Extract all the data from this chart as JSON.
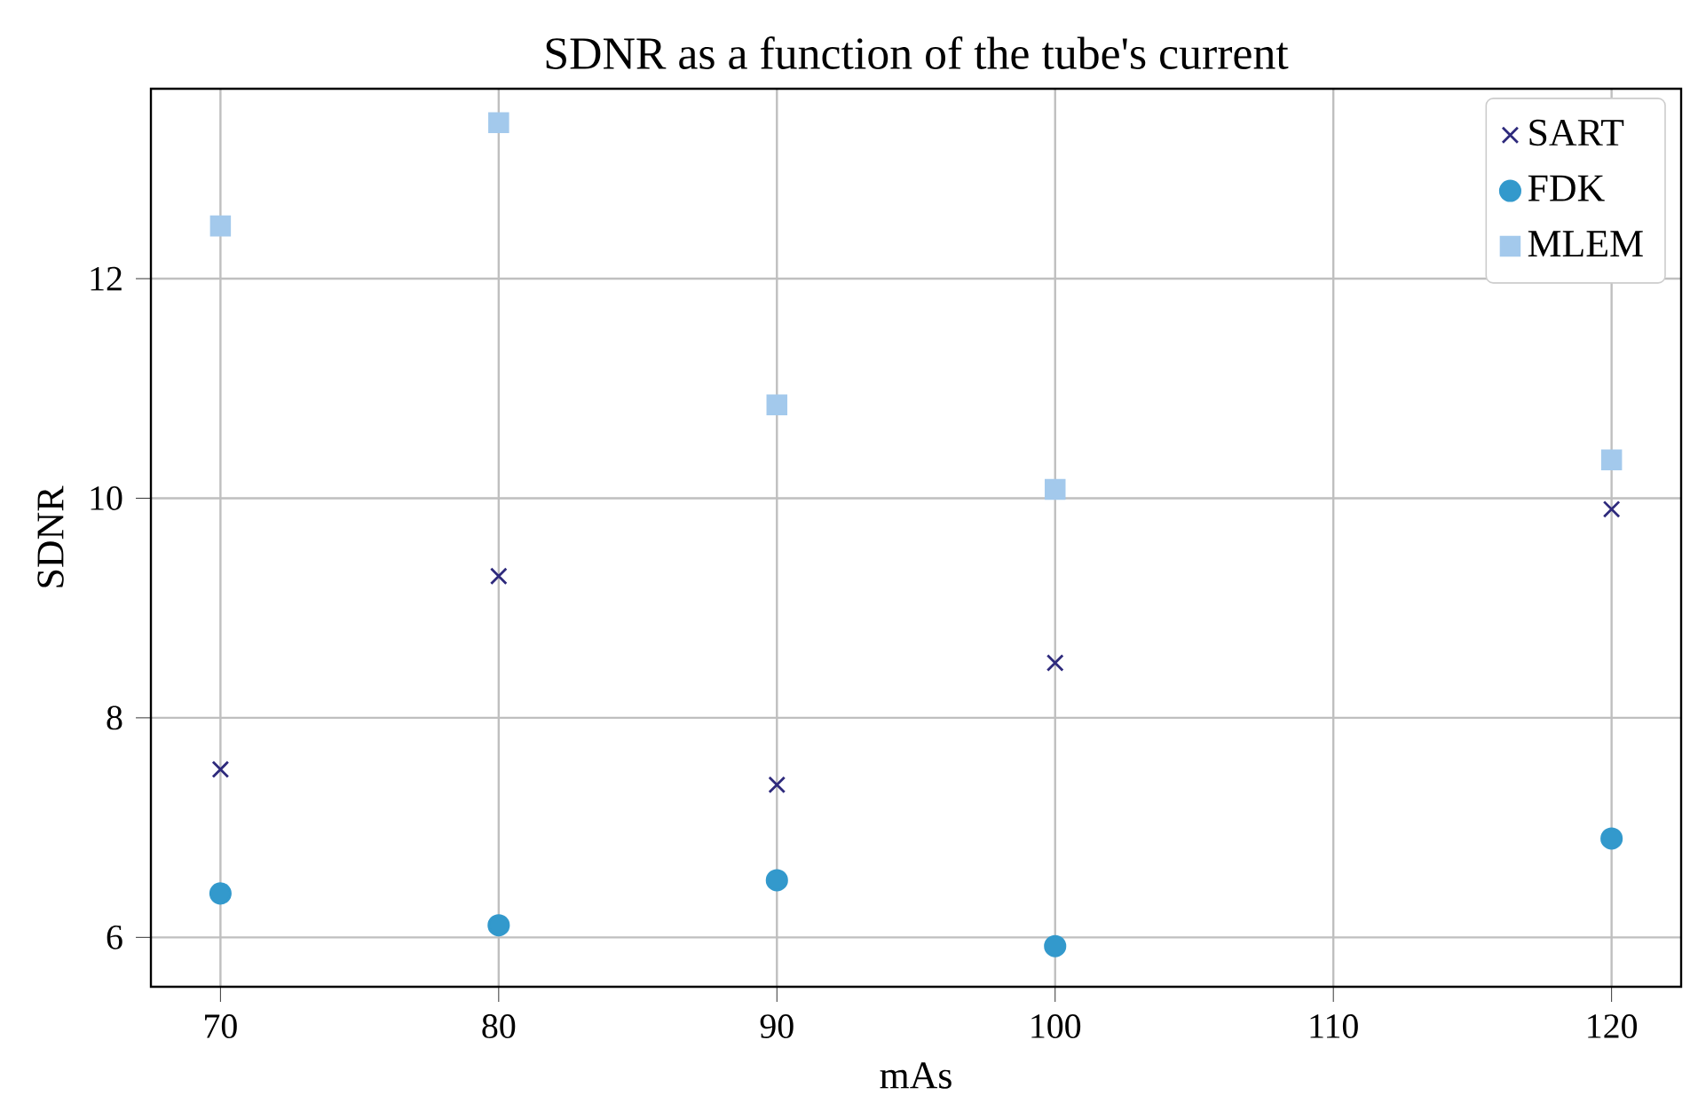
{
  "chart_data": {
    "type": "scatter",
    "title": "SDNR as a function of the tube's current",
    "xlabel": "mAs",
    "ylabel": "SDNR",
    "x": [
      70,
      80,
      90,
      100,
      120
    ],
    "series": [
      {
        "name": "SART",
        "color": "#2e2a7c",
        "marker": "cross",
        "values": [
          7.53,
          9.29,
          7.39,
          8.5,
          9.9
        ]
      },
      {
        "name": "FDK",
        "color": "#3399cc",
        "marker": "circle",
        "values": [
          6.4,
          6.11,
          6.52,
          5.92,
          6.9
        ]
      },
      {
        "name": "MLEM",
        "color": "#a3c9ec",
        "marker": "square",
        "values": [
          12.48,
          13.42,
          10.85,
          10.08,
          10.35
        ]
      }
    ],
    "xlim": [
      67.5,
      122.5
    ],
    "ylim": [
      5.55,
      13.73
    ],
    "xticks": [
      70,
      80,
      90,
      100,
      110,
      120
    ],
    "yticks": [
      6,
      8,
      10,
      12
    ],
    "grid": true,
    "legend": "top right"
  }
}
